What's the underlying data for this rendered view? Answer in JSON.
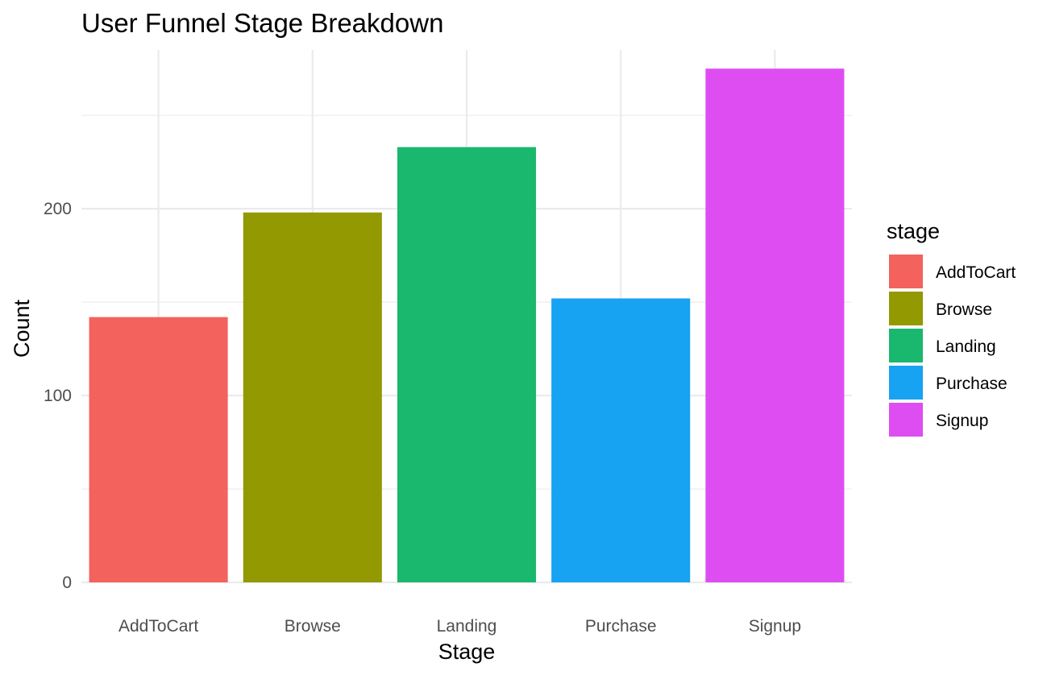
{
  "chart_data": {
    "type": "bar",
    "title": "User Funnel Stage Breakdown",
    "xlabel": "Stage",
    "ylabel": "Count",
    "categories": [
      "AddToCart",
      "Browse",
      "Landing",
      "Purchase",
      "Signup"
    ],
    "values": [
      142,
      198,
      233,
      152,
      275
    ],
    "colors": [
      "#F8766D",
      "#A3A500",
      "#00BF7D",
      "#00B0F6",
      "#E76BF3"
    ],
    "bar_colors": [
      "#F3625C",
      "#939900",
      "#1AB76E",
      "#17A2F2",
      "#DE4DF2"
    ],
    "ylim": [
      0,
      285
    ],
    "y_ticks": [
      0,
      100,
      200
    ],
    "y_tick_labels": [
      "0",
      "100",
      "200"
    ],
    "grid": true,
    "legend": {
      "title": "stage",
      "position": "right",
      "items": [
        "AddToCart",
        "Browse",
        "Landing",
        "Purchase",
        "Signup"
      ]
    }
  }
}
